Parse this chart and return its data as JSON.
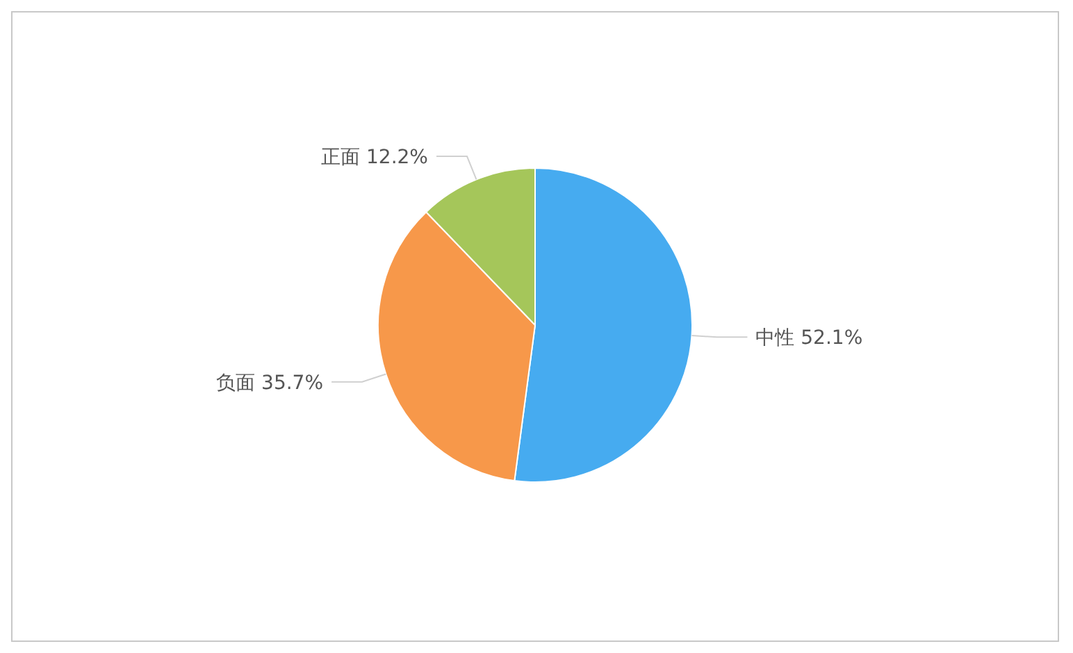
{
  "chart_data": {
    "type": "pie",
    "categories": [
      "中性",
      "负面",
      "正面"
    ],
    "values": [
      52.1,
      35.7,
      12.2
    ],
    "colors": [
      "#46abf0",
      "#f7984a",
      "#a5c65a"
    ],
    "value_labels": [
      "52.1%",
      "35.7%",
      "12.2%"
    ]
  }
}
